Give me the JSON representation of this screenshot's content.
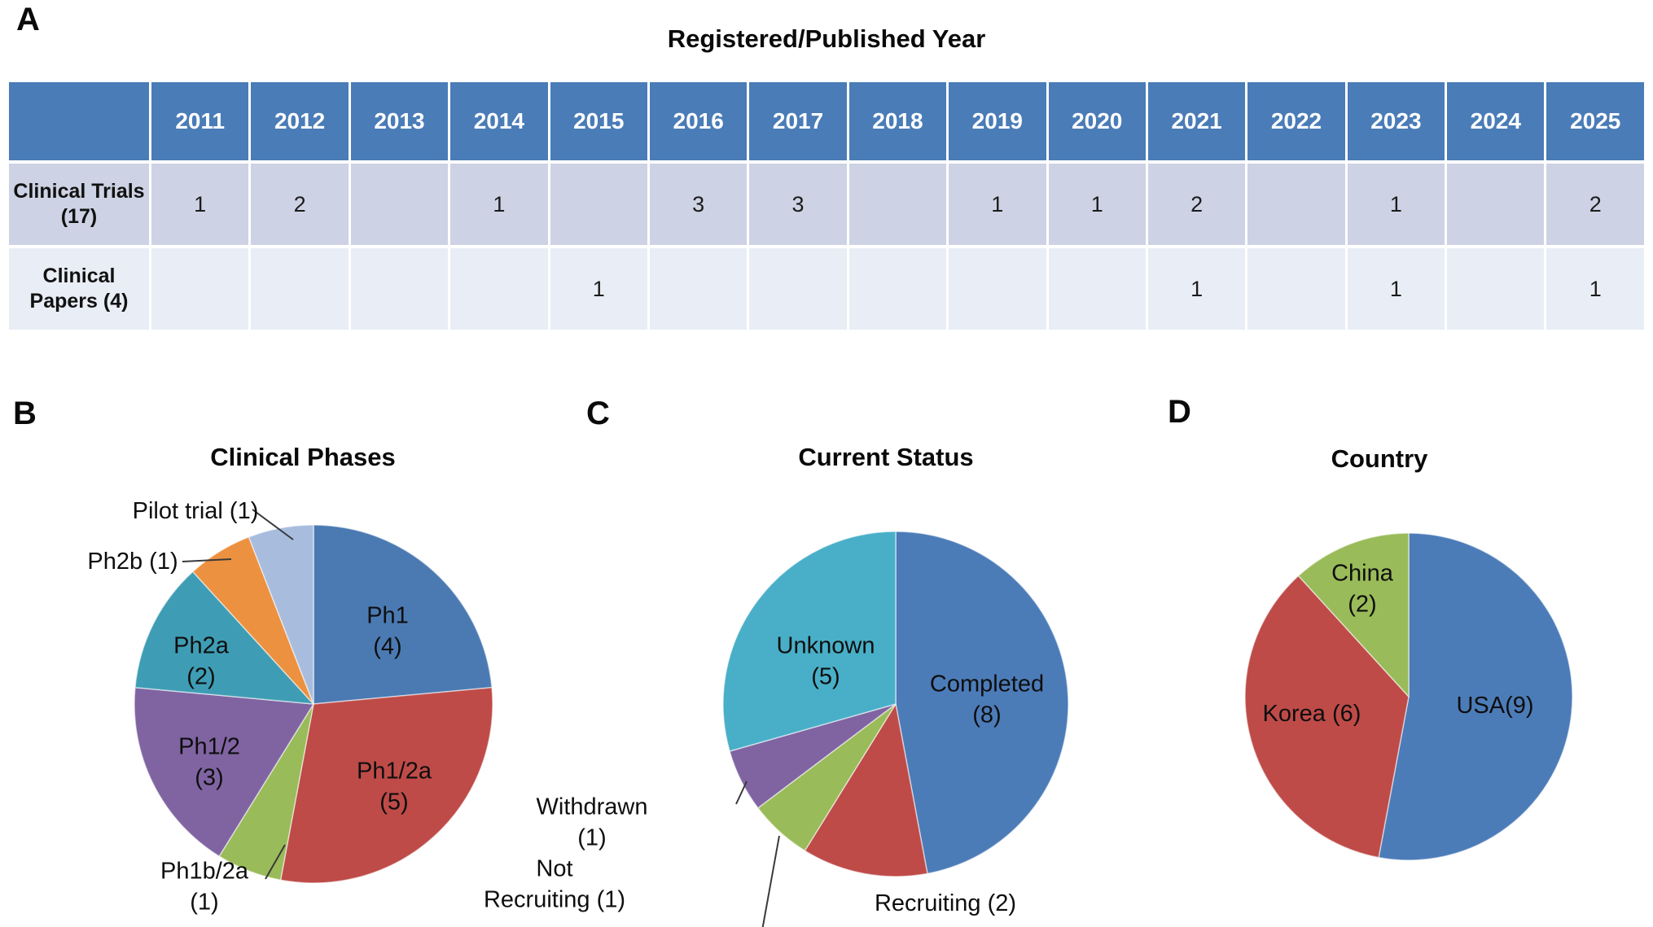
{
  "panels": {
    "a": "A",
    "b": "B",
    "c": "C",
    "d": "D"
  },
  "table": {
    "title": "Registered/Published Year",
    "years": [
      "2011",
      "2012",
      "2013",
      "2014",
      "2015",
      "2016",
      "2017",
      "2018",
      "2019",
      "2020",
      "2021",
      "2022",
      "2023",
      "2024",
      "2025"
    ],
    "rows": [
      {
        "label": "Clinical Trials (17)",
        "values": [
          "1",
          "2",
          "",
          "1",
          "",
          "3",
          "3",
          "",
          "1",
          "1",
          "2",
          "",
          "1",
          "",
          "2"
        ]
      },
      {
        "label": "Clinical Papers (4)",
        "values": [
          "",
          "",
          "",
          "",
          "1",
          "",
          "",
          "",
          "",
          "",
          "1",
          "",
          "1",
          "",
          "1"
        ]
      }
    ],
    "colors": {
      "header_bg": "#4A7CB7",
      "header_text": "#FFFFFF",
      "row1_bg": "#CDD3E4",
      "row2_bg": "#E9EDF5",
      "grid": "#FFFFFF"
    }
  },
  "chart_data": [
    {
      "type": "pie",
      "panel": "B",
      "title": "Clinical Phases",
      "total": 17,
      "start_angle_deg": 0,
      "direction": "clockwise",
      "legend_position": "none",
      "slices": [
        {
          "label": "Ph1",
          "value": 4,
          "color": "#4B7AB3",
          "label_text": "Ph1\n(4)",
          "placement": "inside"
        },
        {
          "label": "Ph1/2a",
          "value": 5,
          "color": "#BE4B48",
          "label_text": "Ph1/2a\n(5)",
          "placement": "inside"
        },
        {
          "label": "Ph1b/2a",
          "value": 1,
          "color": "#9ABB59",
          "label_text": "Ph1b/2a\n(1)",
          "placement": "outside"
        },
        {
          "label": "Ph1/2",
          "value": 3,
          "color": "#8064A2",
          "label_text": "Ph1/2\n(3)",
          "placement": "inside"
        },
        {
          "label": "Ph2a",
          "value": 2,
          "color": "#3E9DB5",
          "label_text": "Ph2a\n(2)",
          "placement": "inside"
        },
        {
          "label": "Ph2b",
          "value": 1,
          "color": "#EC9140",
          "label_text": "Ph2b (1)",
          "placement": "outside"
        },
        {
          "label": "Pilot trial",
          "value": 1,
          "color": "#A8BDDE",
          "label_text": "Pilot trial (1)",
          "placement": "outside"
        }
      ]
    },
    {
      "type": "pie",
      "panel": "C",
      "title": "Current Status",
      "total": 17,
      "start_angle_deg": 0,
      "direction": "clockwise",
      "legend_position": "none",
      "slices": [
        {
          "label": "Completed",
          "value": 8,
          "color": "#4C7CB8",
          "label_text": "Completed\n(8)",
          "placement": "inside"
        },
        {
          "label": "Recruiting",
          "value": 2,
          "color": "#BE4B48",
          "label_text": "Recruiting (2)",
          "placement": "outside"
        },
        {
          "label": "Not Recruiting",
          "value": 1,
          "color": "#9ABB59",
          "label_text": "Not\nRecruiting (1)",
          "placement": "outside"
        },
        {
          "label": "Withdrawn",
          "value": 1,
          "color": "#8064A2",
          "label_text": "Withdrawn\n(1)",
          "placement": "outside"
        },
        {
          "label": "Unknown",
          "value": 5,
          "color": "#49AFC8",
          "label_text": "Unknown\n(5)",
          "placement": "inside"
        }
      ]
    },
    {
      "type": "pie",
      "panel": "D",
      "title": "Country",
      "total": 17,
      "start_angle_deg": 0,
      "direction": "clockwise",
      "legend_position": "none",
      "slices": [
        {
          "label": "USA",
          "value": 9,
          "color": "#4C7CB8",
          "label_text": "USA(9)",
          "placement": "inside"
        },
        {
          "label": "Korea",
          "value": 6,
          "color": "#BE4B48",
          "label_text": "Korea (6)",
          "placement": "inside"
        },
        {
          "label": "China",
          "value": 2,
          "color": "#9ABB59",
          "label_text": "China\n(2)",
          "placement": "inside"
        }
      ]
    }
  ]
}
